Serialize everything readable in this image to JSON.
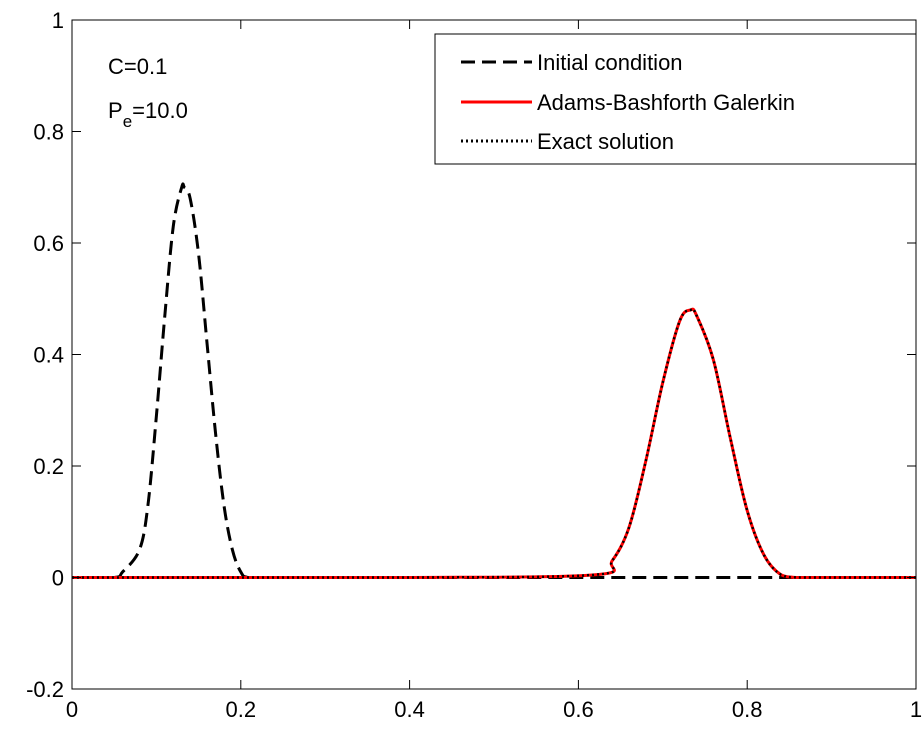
{
  "chart_data": {
    "type": "line",
    "title": "",
    "xlabel": "",
    "ylabel": "",
    "xlim": [
      0,
      1
    ],
    "ylim": [
      -0.2,
      1
    ],
    "xticks": [
      "0",
      "0.2",
      "0.4",
      "0.6",
      "0.8",
      "1"
    ],
    "yticks": [
      "-0.2",
      "0",
      "0.2",
      "0.4",
      "0.6",
      "0.8",
      "1"
    ],
    "grid": false,
    "legend_position": "top-right",
    "annotations": {
      "courant": "C=0.1",
      "peclet_main": "P",
      "peclet_sub": "e",
      "peclet_value": "=10.0"
    },
    "series": [
      {
        "name": "Initial condition",
        "style": "dashed",
        "color": "#000000",
        "x": [
          0,
          0.05,
          0.06,
          0.08,
          0.09,
          0.1,
          0.11,
          0.12,
          0.13,
          0.133,
          0.14,
          0.15,
          0.16,
          0.17,
          0.18,
          0.19,
          0.2,
          0.21,
          0.25,
          0.4,
          0.6,
          0.8,
          1.0
        ],
        "y": [
          0,
          0,
          0.01,
          0.05,
          0.13,
          0.29,
          0.47,
          0.63,
          0.7,
          0.7,
          0.68,
          0.58,
          0.42,
          0.26,
          0.13,
          0.05,
          0.01,
          0,
          0,
          0,
          0,
          0,
          0
        ]
      },
      {
        "name": "Adams-Bashforth Galerkin",
        "style": "solid",
        "color": "#ff0000",
        "x": [
          0,
          0.4,
          0.62,
          0.64,
          0.66,
          0.68,
          0.7,
          0.72,
          0.733,
          0.74,
          0.76,
          0.78,
          0.8,
          0.82,
          0.84,
          0.86,
          0.9,
          0.95,
          1.0
        ],
        "y": [
          0,
          0,
          0.005,
          0.03,
          0.09,
          0.21,
          0.35,
          0.46,
          0.48,
          0.47,
          0.39,
          0.25,
          0.12,
          0.04,
          0.005,
          0,
          0,
          0,
          0
        ]
      },
      {
        "name": "Exact solution",
        "style": "dotted",
        "color": "#000000",
        "x": [
          0,
          0.4,
          0.62,
          0.64,
          0.66,
          0.68,
          0.7,
          0.72,
          0.733,
          0.74,
          0.76,
          0.78,
          0.8,
          0.82,
          0.84,
          0.86,
          0.9,
          0.95,
          1.0
        ],
        "y": [
          0,
          0,
          0.005,
          0.03,
          0.09,
          0.21,
          0.35,
          0.46,
          0.48,
          0.47,
          0.39,
          0.25,
          0.12,
          0.04,
          0.005,
          0,
          0,
          0,
          0
        ]
      }
    ]
  }
}
